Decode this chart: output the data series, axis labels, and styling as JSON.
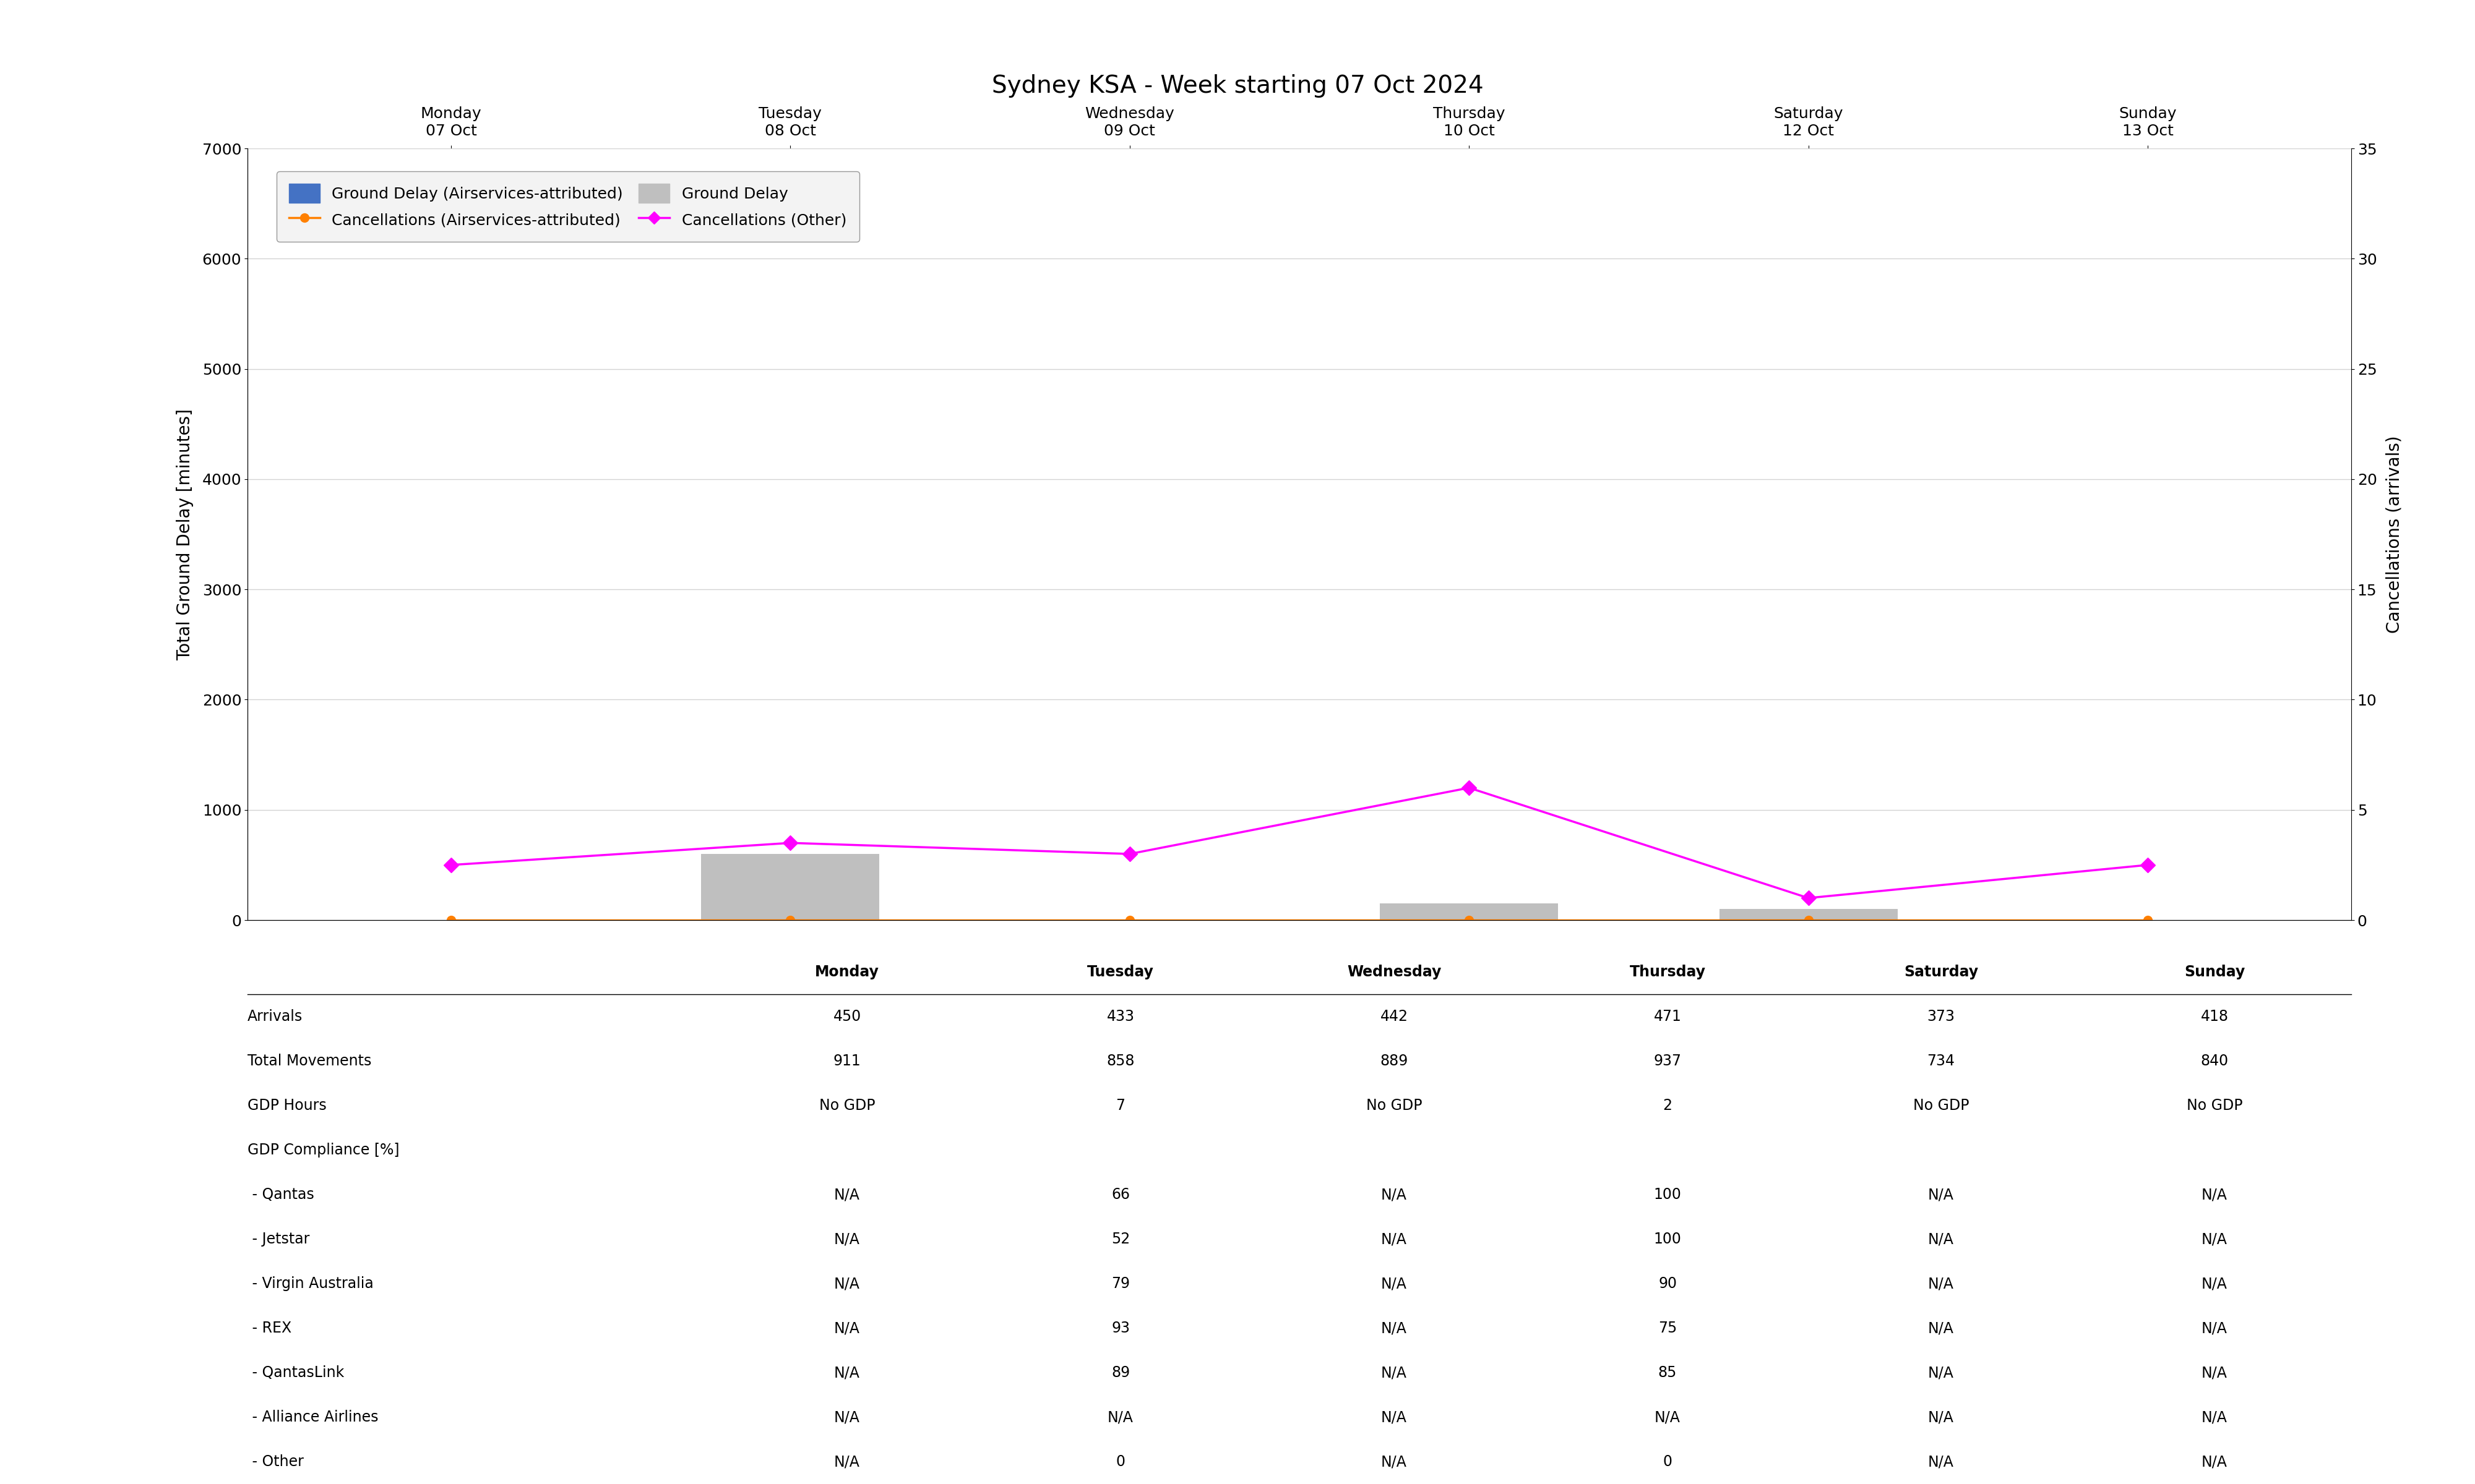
{
  "title": "Sydney KSA - Week starting 07 Oct 2024",
  "days": [
    "Monday\n07 Oct",
    "Tuesday\n08 Oct",
    "Wednesday\n09 Oct",
    "Thursday\n10 Oct",
    "Saturday\n12 Oct",
    "Sunday\n13 Oct"
  ],
  "x_positions": [
    0,
    1,
    2,
    3,
    4,
    5
  ],
  "bar_width": 0.35,
  "ground_delay_airservices": [
    0,
    0,
    0,
    0,
    0,
    0
  ],
  "ground_delay_total": [
    0,
    600,
    0,
    150,
    100,
    0
  ],
  "cancellations_airservices": [
    0,
    0,
    0,
    0,
    0,
    0
  ],
  "cancellations_other": [
    2.5,
    3.5,
    3.0,
    6.0,
    1.0,
    2.5
  ],
  "ylim_left": [
    0,
    7000
  ],
  "ylim_right": [
    0,
    35
  ],
  "yticks_left": [
    0,
    1000,
    2000,
    3000,
    4000,
    5000,
    6000,
    7000
  ],
  "yticks_right": [
    0,
    5,
    10,
    15,
    20,
    25,
    30,
    35
  ],
  "ylabel_left": "Total Ground Delay [minutes]",
  "ylabel_right": "Cancellations (arrivals)",
  "bar_color_airservices": "#4472C4",
  "bar_color_total": "#BFBFBF",
  "line_color_airservices": "#FF8000",
  "line_color_other": "#FF00FF",
  "legend_labels": [
    "Ground Delay (Airservices-attributed)",
    "Ground Delay",
    "Cancellations (Airservices-attributed)",
    "Cancellations (Other)"
  ],
  "table_rows": [
    [
      "",
      "Monday",
      "Tuesday",
      "Wednesday",
      "Thursday",
      "Saturday",
      "Sunday"
    ],
    [
      "Arrivals",
      "450",
      "433",
      "442",
      "471",
      "373",
      "418"
    ],
    [
      "Total Movements",
      "911",
      "858",
      "889",
      "937",
      "734",
      "840"
    ],
    [
      "GDP Hours",
      "No GDP",
      "7",
      "No GDP",
      "2",
      "No GDP",
      "No GDP"
    ],
    [
      "GDP Compliance [%]",
      "",
      "",
      "",
      "",
      "",
      ""
    ],
    [
      " - Qantas",
      "N/A",
      "66",
      "N/A",
      "100",
      "N/A",
      "N/A"
    ],
    [
      " - Jetstar",
      "N/A",
      "52",
      "N/A",
      "100",
      "N/A",
      "N/A"
    ],
    [
      " - Virgin Australia",
      "N/A",
      "79",
      "N/A",
      "90",
      "N/A",
      "N/A"
    ],
    [
      " - REX",
      "N/A",
      "93",
      "N/A",
      "75",
      "N/A",
      "N/A"
    ],
    [
      " - QantasLink",
      "N/A",
      "89",
      "N/A",
      "85",
      "N/A",
      "N/A"
    ],
    [
      " - Alliance Airlines",
      "N/A",
      "N/A",
      "N/A",
      "N/A",
      "N/A",
      "N/A"
    ],
    [
      " - Other",
      "N/A",
      "0",
      "N/A",
      "0",
      "N/A",
      "N/A"
    ]
  ],
  "figure_width": 40,
  "figure_height": 24,
  "title_fontsize": 28,
  "axis_fontsize": 20,
  "tick_fontsize": 18,
  "legend_fontsize": 18,
  "table_fontsize": 17
}
